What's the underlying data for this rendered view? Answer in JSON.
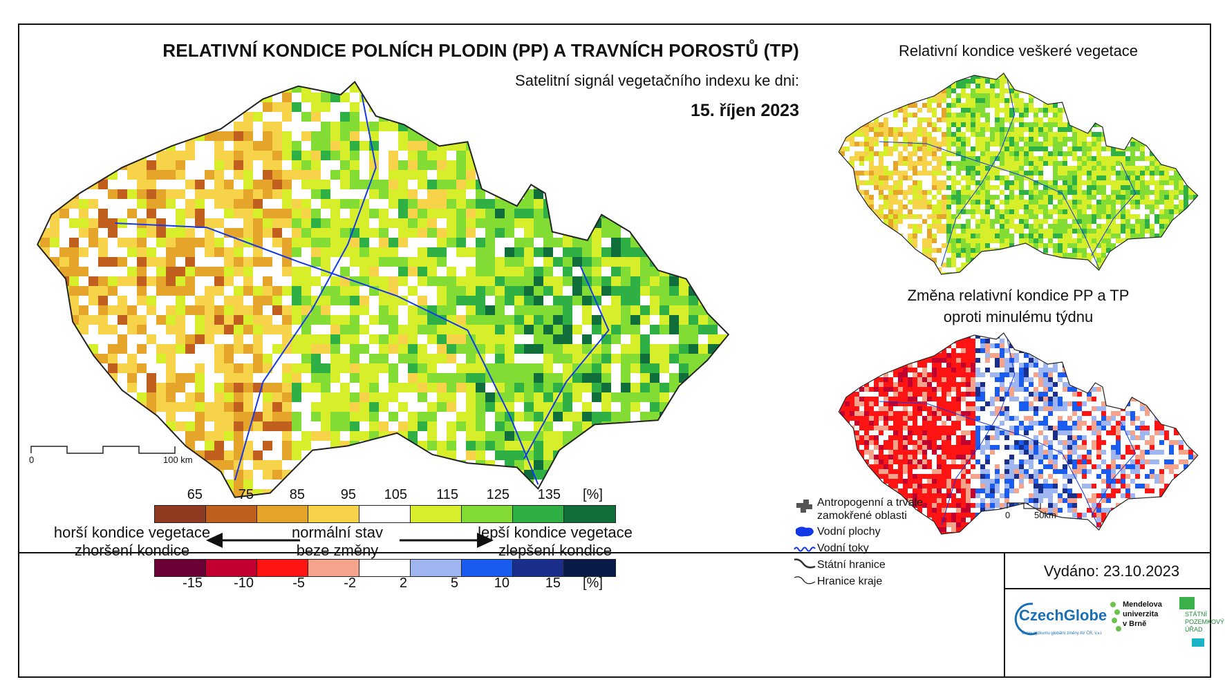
{
  "main": {
    "title": "RELATIVNÍ KONDICE POLNÍCH PLODIN (PP) A TRAVNÍCH POROSTŮ (TP)",
    "subtitle": "Satelitní signál vegetačního indexu ke dni:",
    "date": "15. říjen 2023",
    "scale": {
      "start": "0",
      "end": "100 km"
    }
  },
  "side_maps": {
    "vegetation_title": "Relativní kondice veškeré vegetace",
    "change_title_line1": "Změna relativní kondice PP a TP",
    "change_title_line2": "oproti minulému týdnu",
    "scale": {
      "start": "0",
      "end": "50km"
    }
  },
  "legend": {
    "condition_ticks": [
      "65",
      "75",
      "85",
      "95",
      "105",
      "115",
      "125",
      "135"
    ],
    "condition_unit": "[%]",
    "condition_colors": [
      "#8e3b22",
      "#c1601e",
      "#e4a52a",
      "#f7d34a",
      "#ffffff",
      "#d6ef2a",
      "#82dc33",
      "#2fb044",
      "#0f6e3a"
    ],
    "change_ticks": [
      "-15",
      "-10",
      "-5",
      "-2",
      "2",
      "5",
      "10",
      "15"
    ],
    "change_unit": "[%]",
    "change_colors": [
      "#6b0034",
      "#c1002f",
      "#ff1414",
      "#f5a38a",
      "#ffffff",
      "#9fb6f0",
      "#1a5cf0",
      "#1a2f8c",
      "#081a48"
    ],
    "worse_line1": "horší kondice vegetace",
    "worse_line2": "zhoršení kondice",
    "normal_line1": "normální stav",
    "normal_line2": "beze změny",
    "better_line1": "lepší kondice vegetace",
    "better_line2": "zlepšení kondice"
  },
  "symbols": {
    "anthropogenic_line1": "Antropogenní a trvale",
    "anthropogenic_line2": "zamokřené oblasti",
    "water_areas": "Vodní plochy",
    "rivers": "Vodní toky",
    "state_border": "Státní hranice",
    "region_border": "Hranice kraje"
  },
  "footer": {
    "released": "Vydáno: 23.10.2023",
    "logo_czechglobe": "CzechGlobe",
    "logo_czechglobe_sub": "Ústav výzkumu globální změny AV ČR, v.v.i.",
    "logo_mendel_line1": "Mendelova",
    "logo_mendel_line2": "univerzita",
    "logo_mendel_line3": "v Brně",
    "logo_spu_line1": "STÁTNÍ",
    "logo_spu_line2": "POZEMKOVÝ",
    "logo_spu_line3": "ÚŘAD"
  }
}
